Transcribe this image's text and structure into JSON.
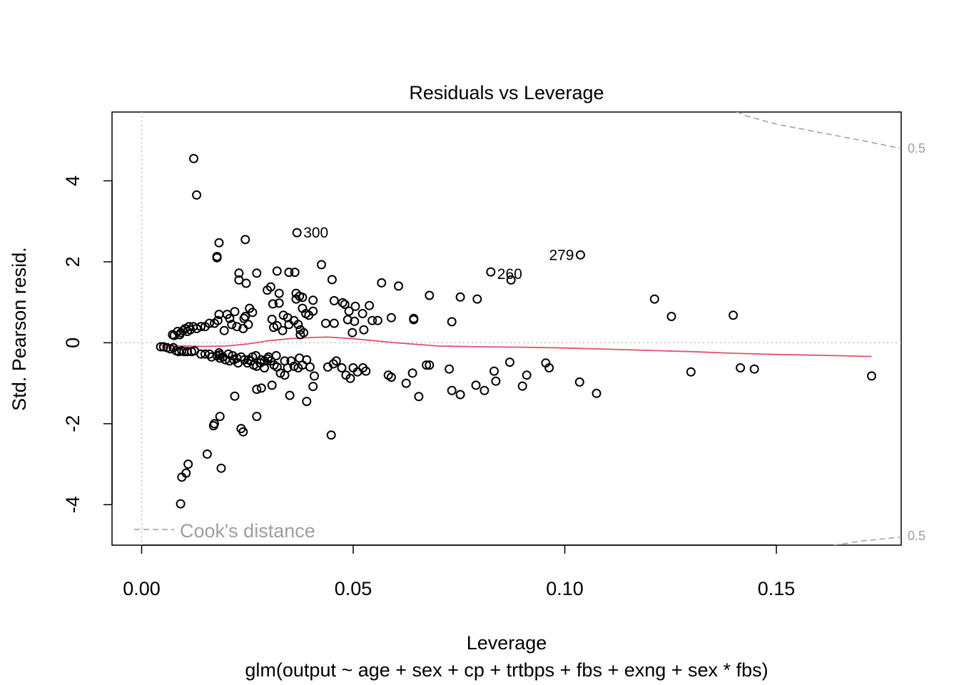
{
  "chart_data": {
    "type": "scatter",
    "title": "Residuals vs Leverage",
    "xlabel": "Leverage",
    "ylabel": "Std. Pearson resid.",
    "subtitle": "glm(output ~ age + sex + cp + trtbps + fbs + exng + sex * fbs)",
    "xlim": [
      -0.007,
      0.1795
    ],
    "ylim": [
      -5.0,
      5.7
    ],
    "xticks": [
      0.0,
      0.05,
      0.1,
      0.15
    ],
    "xtick_labels": [
      "0.00",
      "0.05",
      "0.10",
      "0.15"
    ],
    "yticks": [
      -4,
      -2,
      0,
      2,
      4
    ],
    "ytick_labels": [
      "-4",
      "-2",
      "0",
      "2",
      "4"
    ],
    "grid": false,
    "legend": {
      "label": "Cook's distance",
      "placement": "bottom-left"
    },
    "cook_contour_labels": [
      "0.5",
      "0.5"
    ],
    "colors": {
      "points": "#000000",
      "smooth": "#DF536B",
      "cook": "#9E9E9E",
      "refline": "#BEBEBE"
    },
    "labeled_points": [
      {
        "label": "300",
        "x": 0.0367,
        "y": 2.72
      },
      {
        "label": "279",
        "x": 0.1037,
        "y": 2.17
      },
      {
        "label": "260",
        "x": 0.0825,
        "y": 1.75
      }
    ],
    "points": [
      [
        0.0123,
        4.55
      ],
      [
        0.013,
        3.65
      ],
      [
        0.0183,
        2.47
      ],
      [
        0.0178,
        2.13
      ],
      [
        0.0178,
        2.1
      ],
      [
        0.0245,
        2.55
      ],
      [
        0.0425,
        1.93
      ],
      [
        0.0873,
        1.55
      ],
      [
        0.023,
        1.72
      ],
      [
        0.0272,
        1.72
      ],
      [
        0.032,
        1.77
      ],
      [
        0.0348,
        1.74
      ],
      [
        0.0362,
        1.74
      ],
      [
        0.045,
        1.56
      ],
      [
        0.023,
        1.55
      ],
      [
        0.0247,
        1.47
      ],
      [
        0.0567,
        1.48
      ],
      [
        0.0607,
        1.4
      ],
      [
        0.0305,
        1.38
      ],
      [
        0.0297,
        1.3
      ],
      [
        0.0325,
        1.22
      ],
      [
        0.0365,
        1.22
      ],
      [
        0.0373,
        1.15
      ],
      [
        0.038,
        1.12
      ],
      [
        0.0365,
        1.08
      ],
      [
        0.0405,
        1.05
      ],
      [
        0.0455,
        1.04
      ],
      [
        0.0475,
        0.99
      ],
      [
        0.049,
        0.78
      ],
      [
        0.0405,
        0.78
      ],
      [
        0.038,
        0.85
      ],
      [
        0.0388,
        0.72
      ],
      [
        0.0395,
        0.68
      ],
      [
        0.048,
        0.95
      ],
      [
        0.0505,
        0.9
      ],
      [
        0.0522,
        0.72
      ],
      [
        0.0538,
        0.92
      ],
      [
        0.0545,
        0.55
      ],
      [
        0.0558,
        0.55
      ],
      [
        0.059,
        0.62
      ],
      [
        0.0487,
        0.57
      ],
      [
        0.0503,
        0.53
      ],
      [
        0.0525,
        0.32
      ],
      [
        0.0498,
        0.25
      ],
      [
        0.0455,
        0.48
      ],
      [
        0.0435,
        0.48
      ],
      [
        0.068,
        1.17
      ],
      [
        0.0753,
        1.13
      ],
      [
        0.0793,
        1.08
      ],
      [
        0.1212,
        1.08
      ],
      [
        0.1252,
        0.65
      ],
      [
        0.1398,
        0.68
      ],
      [
        0.0733,
        0.52
      ],
      [
        0.0643,
        0.57
      ],
      [
        0.0643,
        0.6
      ],
      [
        0.031,
        0.96
      ],
      [
        0.0325,
        0.98
      ],
      [
        0.0308,
        0.58
      ],
      [
        0.0335,
        0.68
      ],
      [
        0.0345,
        0.62
      ],
      [
        0.0348,
        0.45
      ],
      [
        0.032,
        0.42
      ],
      [
        0.036,
        0.55
      ],
      [
        0.0333,
        0.3
      ],
      [
        0.0312,
        0.38
      ],
      [
        0.037,
        0.45
      ],
      [
        0.0375,
        0.32
      ],
      [
        0.0383,
        0.25
      ],
      [
        0.0375,
        0.2
      ],
      [
        0.0255,
        0.85
      ],
      [
        0.0262,
        0.75
      ],
      [
        0.0245,
        0.65
      ],
      [
        0.0242,
        0.6
      ],
      [
        0.0252,
        0.45
      ],
      [
        0.024,
        0.35
      ],
      [
        0.022,
        0.77
      ],
      [
        0.0202,
        0.7
      ],
      [
        0.0208,
        0.6
      ],
      [
        0.0183,
        0.7
      ],
      [
        0.018,
        0.55
      ],
      [
        0.0172,
        0.48
      ],
      [
        0.016,
        0.48
      ],
      [
        0.015,
        0.4
      ],
      [
        0.014,
        0.4
      ],
      [
        0.013,
        0.35
      ],
      [
        0.0122,
        0.4
      ],
      [
        0.0112,
        0.4
      ],
      [
        0.0115,
        0.32
      ],
      [
        0.0108,
        0.28
      ],
      [
        0.0103,
        0.35
      ],
      [
        0.0098,
        0.3
      ],
      [
        0.0093,
        0.25
      ],
      [
        0.009,
        0.2
      ],
      [
        0.0085,
        0.28
      ],
      [
        0.0077,
        0.18
      ],
      [
        0.0073,
        0.2
      ],
      [
        0.0195,
        0.3
      ],
      [
        0.0213,
        0.45
      ],
      [
        0.0225,
        0.4
      ],
      [
        0.0045,
        -0.1
      ],
      [
        0.0052,
        -0.1
      ],
      [
        0.006,
        -0.12
      ],
      [
        0.0068,
        -0.15
      ],
      [
        0.0075,
        -0.12
      ],
      [
        0.0082,
        -0.2
      ],
      [
        0.0088,
        -0.22
      ],
      [
        0.0095,
        -0.2
      ],
      [
        0.01,
        -0.22
      ],
      [
        0.0108,
        -0.22
      ],
      [
        0.0118,
        -0.22
      ],
      [
        0.0125,
        -0.2
      ],
      [
        0.014,
        -0.28
      ],
      [
        0.015,
        -0.28
      ],
      [
        0.0165,
        -0.35
      ],
      [
        0.0178,
        -0.32
      ],
      [
        0.0185,
        -0.38
      ],
      [
        0.0192,
        -0.35
      ],
      [
        0.0198,
        -0.42
      ],
      [
        0.0208,
        -0.45
      ],
      [
        0.0218,
        -0.42
      ],
      [
        0.0228,
        -0.5
      ],
      [
        0.0235,
        -0.35
      ],
      [
        0.0243,
        -0.42
      ],
      [
        0.025,
        -0.5
      ],
      [
        0.0258,
        -0.45
      ],
      [
        0.0265,
        -0.55
      ],
      [
        0.0272,
        -0.58
      ],
      [
        0.028,
        -0.5
      ],
      [
        0.029,
        -0.62
      ],
      [
        0.0298,
        -0.4
      ],
      [
        0.0305,
        -0.45
      ],
      [
        0.0313,
        -0.55
      ],
      [
        0.032,
        -0.6
      ],
      [
        0.0328,
        -0.75
      ],
      [
        0.0338,
        -0.8
      ],
      [
        0.0345,
        -0.62
      ],
      [
        0.0353,
        -0.45
      ],
      [
        0.036,
        -0.58
      ],
      [
        0.037,
        -0.62
      ],
      [
        0.038,
        -0.55
      ],
      [
        0.039,
        -0.42
      ],
      [
        0.0398,
        -0.6
      ],
      [
        0.0408,
        -0.82
      ],
      [
        0.044,
        -0.6
      ],
      [
        0.0453,
        -0.52
      ],
      [
        0.046,
        -0.45
      ],
      [
        0.0473,
        -0.62
      ],
      [
        0.0483,
        -0.8
      ],
      [
        0.0493,
        -0.88
      ],
      [
        0.05,
        -0.62
      ],
      [
        0.051,
        -0.72
      ],
      [
        0.0523,
        -0.62
      ],
      [
        0.053,
        -0.7
      ],
      [
        0.0583,
        -0.8
      ],
      [
        0.059,
        -0.85
      ],
      [
        0.0625,
        -1.0
      ],
      [
        0.064,
        -0.75
      ],
      [
        0.0673,
        -0.55
      ],
      [
        0.068,
        -0.55
      ],
      [
        0.0727,
        -0.65
      ],
      [
        0.0733,
        -1.18
      ],
      [
        0.0753,
        -1.28
      ],
      [
        0.079,
        -1.05
      ],
      [
        0.081,
        -1.18
      ],
      [
        0.0833,
        -0.7
      ],
      [
        0.0837,
        -0.95
      ],
      [
        0.087,
        -0.48
      ],
      [
        0.09,
        -1.07
      ],
      [
        0.091,
        -0.8
      ],
      [
        0.0955,
        -0.5
      ],
      [
        0.0963,
        -0.62
      ],
      [
        0.1035,
        -0.97
      ],
      [
        0.1075,
        -1.25
      ],
      [
        0.1298,
        -0.72
      ],
      [
        0.1415,
        -0.62
      ],
      [
        0.1448,
        -0.65
      ],
      [
        0.1725,
        -0.82
      ],
      [
        0.0655,
        -1.33
      ],
      [
        0.022,
        -1.32
      ],
      [
        0.0272,
        -1.15
      ],
      [
        0.0283,
        -1.12
      ],
      [
        0.0308,
        -1.05
      ],
      [
        0.035,
        -1.3
      ],
      [
        0.039,
        -1.45
      ],
      [
        0.0405,
        -1.08
      ],
      [
        0.0448,
        -2.28
      ],
      [
        0.0272,
        -1.82
      ],
      [
        0.0185,
        -1.82
      ],
      [
        0.017,
        -2.05
      ],
      [
        0.0172,
        -2.0
      ],
      [
        0.0235,
        -2.12
      ],
      [
        0.024,
        -2.2
      ],
      [
        0.0155,
        -2.75
      ],
      [
        0.0188,
        -3.1
      ],
      [
        0.011,
        -3.0
      ],
      [
        0.0105,
        -3.22
      ],
      [
        0.0095,
        -3.32
      ],
      [
        0.0092,
        -3.98
      ],
      [
        0.0253,
        -0.42
      ],
      [
        0.0262,
        -0.35
      ],
      [
        0.0183,
        -0.25
      ],
      [
        0.0205,
        -0.28
      ],
      [
        0.0215,
        -0.32
      ],
      [
        0.0225,
        -0.38
      ],
      [
        0.027,
        -0.32
      ],
      [
        0.03,
        -0.35
      ],
      [
        0.0318,
        -0.32
      ],
      [
        0.0338,
        -0.45
      ],
      [
        0.0373,
        -0.38
      ],
      [
        0.0283,
        -0.42
      ],
      [
        0.029,
        -0.45
      ],
      [
        0.016,
        -0.28
      ],
      [
        0.0185,
        -0.3
      ]
    ],
    "smooth_line": [
      [
        0.0045,
        -0.07
      ],
      [
        0.01,
        -0.08
      ],
      [
        0.015,
        -0.09
      ],
      [
        0.02,
        -0.08
      ],
      [
        0.025,
        -0.03
      ],
      [
        0.03,
        0.05
      ],
      [
        0.035,
        0.1
      ],
      [
        0.04,
        0.13
      ],
      [
        0.044,
        0.14
      ],
      [
        0.05,
        0.1
      ],
      [
        0.06,
        0.0
      ],
      [
        0.07,
        -0.08
      ],
      [
        0.08,
        -0.1
      ],
      [
        0.09,
        -0.11
      ],
      [
        0.1,
        -0.13
      ],
      [
        0.11,
        -0.16
      ],
      [
        0.12,
        -0.19
      ],
      [
        0.13,
        -0.22
      ],
      [
        0.14,
        -0.26
      ],
      [
        0.15,
        -0.29
      ],
      [
        0.16,
        -0.31
      ],
      [
        0.1725,
        -0.34
      ]
    ],
    "cook_upper": [
      [
        0.1385,
        5.8
      ],
      [
        0.143,
        5.6
      ],
      [
        0.15,
        5.4
      ],
      [
        0.16,
        5.2
      ],
      [
        0.17,
        5.0
      ],
      [
        0.1795,
        4.8
      ]
    ],
    "cook_lower": [
      [
        0.1635,
        -5.0
      ],
      [
        0.17,
        -4.9
      ],
      [
        0.1795,
        -4.8
      ]
    ]
  }
}
